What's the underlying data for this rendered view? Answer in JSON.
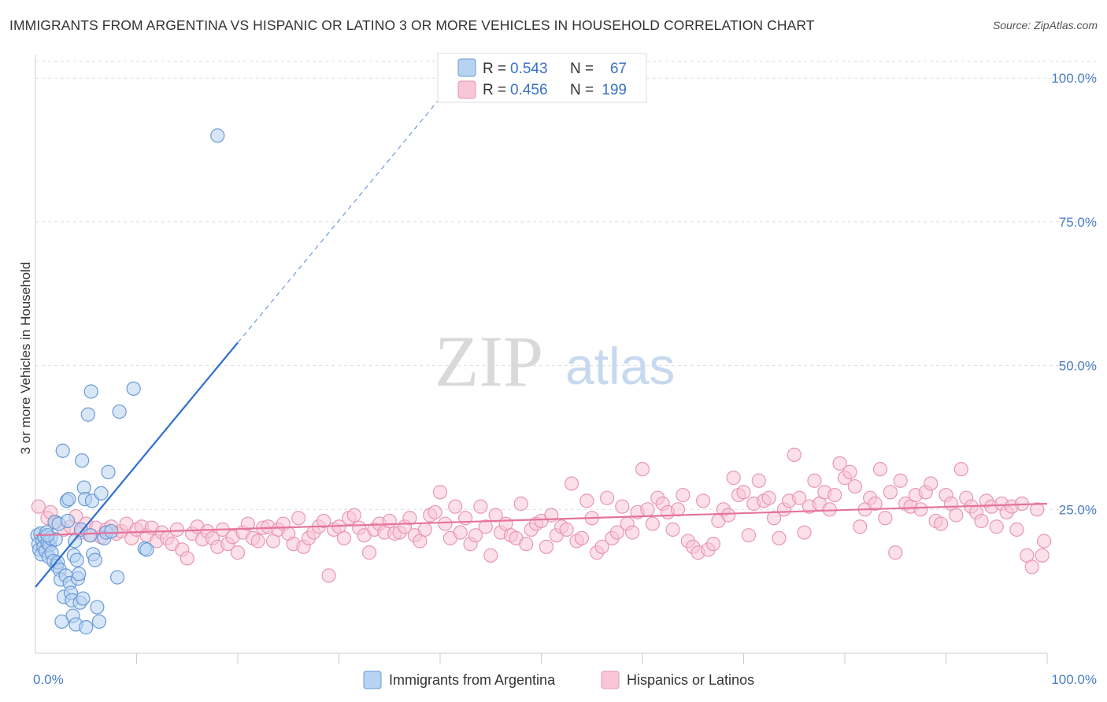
{
  "title": "IMMIGRANTS FROM ARGENTINA VS HISPANIC OR LATINO 3 OR MORE VEHICLES IN HOUSEHOLD CORRELATION CHART",
  "source": "Source: ZipAtlas.com",
  "watermark": {
    "zip": "ZIP",
    "atlas": "atlas"
  },
  "colors": {
    "blue_fill": "#b8d3f2",
    "blue_stroke": "#6a9ad6",
    "blue_line": "#2f6fd0",
    "pink_fill": "#f8c6d6",
    "pink_stroke": "#e996b4",
    "pink_line": "#e5739c",
    "grid": "#dddddd",
    "tick_text": "#4a7cc7"
  },
  "legend": {
    "rows": [
      {
        "r_label": "R =",
        "r_value": "0.543",
        "n_label": "N =",
        "n_value": "67"
      },
      {
        "r_label": "R =",
        "r_value": "0.456",
        "n_label": "N =",
        "n_value": "199"
      }
    ]
  },
  "chart_data": {
    "type": "scatter",
    "title": "IMMIGRANTS FROM ARGENTINA VS HISPANIC OR LATINO 3 OR MORE VEHICLES IN HOUSEHOLD CORRELATION CHART",
    "xlabel": "",
    "ylabel": "3 or more Vehicles in Household",
    "xlim": [
      0,
      100
    ],
    "ylim": [
      0,
      104
    ],
    "x_tick_labels": [
      "0.0%",
      "100.0%"
    ],
    "y_ticks": [
      {
        "value": 25,
        "label": "25.0%"
      },
      {
        "value": 50,
        "label": "50.0%"
      },
      {
        "value": 75,
        "label": "75.0%"
      },
      {
        "value": 100,
        "label": "100.0%"
      }
    ],
    "grid": true,
    "legend_position": "top-center",
    "series": [
      {
        "name": "Immigrants from Argentina",
        "r": 0.543,
        "n": 67,
        "trend": {
          "x0": 0,
          "y0": 11.5,
          "x1": 20,
          "y1": 54,
          "dash_to_x": 40
        },
        "points": [
          [
            0.2,
            20.5
          ],
          [
            0.3,
            19.0
          ],
          [
            0.4,
            18.0
          ],
          [
            0.5,
            20.8
          ],
          [
            0.6,
            17.2
          ],
          [
            0.7,
            19.5
          ],
          [
            0.8,
            18.5
          ],
          [
            0.9,
            20.2
          ],
          [
            1.0,
            17.8
          ],
          [
            1.1,
            21.0
          ],
          [
            1.2,
            19.2
          ],
          [
            1.3,
            16.8
          ],
          [
            1.4,
            18.8
          ],
          [
            1.5,
            20.0
          ],
          [
            1.6,
            17.5
          ],
          [
            1.8,
            16.0
          ],
          [
            1.9,
            22.8
          ],
          [
            2.0,
            19.8
          ],
          [
            2.1,
            15.2
          ],
          [
            2.2,
            15.8
          ],
          [
            2.3,
            22.5
          ],
          [
            2.4,
            14.5
          ],
          [
            2.5,
            12.8
          ],
          [
            2.6,
            5.5
          ],
          [
            2.7,
            35.2
          ],
          [
            2.8,
            9.8
          ],
          [
            3.0,
            13.5
          ],
          [
            3.1,
            26.5
          ],
          [
            3.2,
            23.0
          ],
          [
            3.3,
            26.8
          ],
          [
            3.4,
            12.2
          ],
          [
            3.5,
            10.5
          ],
          [
            3.6,
            9.2
          ],
          [
            3.7,
            6.5
          ],
          [
            3.8,
            17.0
          ],
          [
            3.9,
            19.5
          ],
          [
            4.0,
            5.0
          ],
          [
            4.1,
            16.2
          ],
          [
            4.2,
            13.0
          ],
          [
            4.3,
            13.8
          ],
          [
            4.4,
            8.8
          ],
          [
            4.5,
            21.5
          ],
          [
            4.6,
            33.5
          ],
          [
            4.7,
            9.5
          ],
          [
            4.8,
            28.8
          ],
          [
            4.9,
            26.8
          ],
          [
            5.0,
            4.5
          ],
          [
            5.2,
            41.5
          ],
          [
            5.4,
            20.5
          ],
          [
            5.5,
            45.5
          ],
          [
            5.6,
            26.5
          ],
          [
            5.7,
            17.2
          ],
          [
            5.9,
            16.2
          ],
          [
            6.1,
            8.0
          ],
          [
            6.3,
            5.5
          ],
          [
            6.5,
            27.8
          ],
          [
            6.8,
            20.0
          ],
          [
            7.0,
            21.0
          ],
          [
            7.2,
            31.5
          ],
          [
            7.5,
            21.2
          ],
          [
            8.1,
            13.2
          ],
          [
            8.3,
            42.0
          ],
          [
            9.7,
            46.0
          ],
          [
            10.8,
            18.2
          ],
          [
            11.0,
            18.0
          ],
          [
            18.0,
            90.0
          ],
          [
            1.2,
            20.5
          ]
        ]
      },
      {
        "name": "Hispanics or Latinos",
        "r": 0.456,
        "n": 199,
        "trend": {
          "x0": 0,
          "y0": 20.5,
          "x1": 100,
          "y1": 26.0
        },
        "points": [
          [
            0.3,
            25.5
          ],
          [
            1.2,
            23.5
          ],
          [
            1.5,
            24.5
          ],
          [
            2.0,
            22.8
          ],
          [
            2.8,
            21.5
          ],
          [
            3.5,
            22.0
          ],
          [
            4.0,
            23.8
          ],
          [
            4.5,
            21.0
          ],
          [
            5.0,
            22.5
          ],
          [
            5.5,
            20.5
          ],
          [
            6.0,
            21.8
          ],
          [
            6.5,
            20.2
          ],
          [
            7.0,
            21.5
          ],
          [
            7.5,
            22.0
          ],
          [
            8.0,
            20.8
          ],
          [
            8.5,
            21.2
          ],
          [
            9.0,
            22.5
          ],
          [
            9.5,
            20.0
          ],
          [
            10.0,
            21.5
          ],
          [
            10.5,
            22.0
          ],
          [
            11.0,
            20.5
          ],
          [
            11.5,
            21.8
          ],
          [
            12.0,
            19.5
          ],
          [
            12.5,
            21.0
          ],
          [
            13.0,
            20.0
          ],
          [
            13.5,
            19.0
          ],
          [
            14.0,
            21.5
          ],
          [
            14.5,
            18.0
          ],
          [
            15.0,
            16.5
          ],
          [
            15.5,
            20.8
          ],
          [
            16.0,
            22.0
          ],
          [
            16.5,
            19.8
          ],
          [
            17.0,
            21.2
          ],
          [
            17.5,
            20.0
          ],
          [
            18.0,
            18.5
          ],
          [
            18.5,
            21.5
          ],
          [
            19.0,
            19.0
          ],
          [
            19.5,
            20.2
          ],
          [
            20.0,
            17.5
          ],
          [
            20.5,
            21.0
          ],
          [
            21.0,
            22.5
          ],
          [
            21.5,
            20.0
          ],
          [
            22.0,
            19.5
          ],
          [
            22.5,
            21.8
          ],
          [
            23.0,
            22.0
          ],
          [
            23.5,
            19.5
          ],
          [
            24.0,
            21.5
          ],
          [
            24.5,
            22.5
          ],
          [
            25.0,
            20.8
          ],
          [
            25.5,
            19.0
          ],
          [
            26.0,
            23.5
          ],
          [
            26.5,
            18.5
          ],
          [
            27.0,
            20.0
          ],
          [
            27.5,
            21.0
          ],
          [
            28.0,
            22.0
          ],
          [
            28.5,
            23.0
          ],
          [
            29.0,
            13.5
          ],
          [
            29.5,
            21.5
          ],
          [
            30.0,
            22.0
          ],
          [
            30.5,
            20.0
          ],
          [
            31.0,
            23.5
          ],
          [
            31.5,
            24.0
          ],
          [
            32.0,
            21.8
          ],
          [
            32.5,
            20.5
          ],
          [
            33.0,
            17.5
          ],
          [
            33.5,
            21.5
          ],
          [
            34.0,
            22.5
          ],
          [
            34.5,
            21.0
          ],
          [
            35.0,
            23.0
          ],
          [
            35.5,
            20.8
          ],
          [
            36.0,
            21.0
          ],
          [
            36.5,
            22.0
          ],
          [
            37.0,
            23.5
          ],
          [
            37.5,
            20.5
          ],
          [
            38.0,
            19.5
          ],
          [
            38.5,
            21.5
          ],
          [
            39.0,
            24.0
          ],
          [
            39.5,
            24.5
          ],
          [
            40.0,
            28.0
          ],
          [
            40.5,
            22.5
          ],
          [
            41.0,
            20.0
          ],
          [
            41.5,
            25.5
          ],
          [
            42.0,
            21.0
          ],
          [
            42.5,
            23.5
          ],
          [
            43.0,
            19.0
          ],
          [
            43.5,
            20.5
          ],
          [
            44.0,
            25.5
          ],
          [
            44.5,
            22.0
          ],
          [
            45.0,
            17.0
          ],
          [
            45.5,
            24.0
          ],
          [
            46.0,
            21.0
          ],
          [
            46.5,
            22.5
          ],
          [
            47.0,
            20.5
          ],
          [
            47.5,
            20.0
          ],
          [
            48.0,
            26.0
          ],
          [
            48.5,
            19.0
          ],
          [
            49.0,
            21.5
          ],
          [
            49.5,
            22.5
          ],
          [
            50.0,
            23.0
          ],
          [
            50.5,
            18.5
          ],
          [
            51.0,
            24.0
          ],
          [
            51.5,
            20.5
          ],
          [
            52.0,
            22.0
          ],
          [
            52.5,
            21.5
          ],
          [
            53.0,
            29.5
          ],
          [
            53.5,
            19.5
          ],
          [
            54.0,
            20.0
          ],
          [
            54.5,
            26.5
          ],
          [
            55.0,
            23.5
          ],
          [
            55.5,
            17.5
          ],
          [
            56.0,
            18.5
          ],
          [
            56.5,
            27.0
          ],
          [
            57.0,
            20.0
          ],
          [
            57.5,
            21.0
          ],
          [
            58.0,
            25.5
          ],
          [
            58.5,
            22.5
          ],
          [
            59.0,
            21.0
          ],
          [
            59.5,
            24.5
          ],
          [
            60.0,
            32.0
          ],
          [
            60.5,
            25.0
          ],
          [
            61.0,
            22.5
          ],
          [
            61.5,
            27.0
          ],
          [
            62.0,
            26.0
          ],
          [
            62.5,
            24.5
          ],
          [
            63.0,
            21.5
          ],
          [
            63.5,
            25.0
          ],
          [
            64.0,
            27.5
          ],
          [
            64.5,
            19.5
          ],
          [
            65.0,
            18.5
          ],
          [
            65.5,
            17.5
          ],
          [
            66.0,
            26.5
          ],
          [
            66.5,
            18.0
          ],
          [
            67.0,
            19.0
          ],
          [
            67.5,
            23.0
          ],
          [
            68.0,
            25.0
          ],
          [
            68.5,
            24.0
          ],
          [
            69.0,
            30.5
          ],
          [
            69.5,
            27.5
          ],
          [
            70.0,
            28.0
          ],
          [
            70.5,
            20.5
          ],
          [
            71.0,
            26.0
          ],
          [
            71.5,
            30.0
          ],
          [
            72.0,
            26.5
          ],
          [
            72.5,
            27.0
          ],
          [
            73.0,
            23.5
          ],
          [
            73.5,
            20.0
          ],
          [
            74.0,
            25.0
          ],
          [
            74.5,
            26.5
          ],
          [
            75.0,
            34.5
          ],
          [
            75.5,
            27.0
          ],
          [
            76.0,
            21.0
          ],
          [
            76.5,
            25.5
          ],
          [
            77.0,
            30.0
          ],
          [
            77.5,
            26.0
          ],
          [
            78.0,
            28.0
          ],
          [
            78.5,
            25.0
          ],
          [
            79.0,
            27.5
          ],
          [
            79.5,
            33.0
          ],
          [
            80.0,
            30.5
          ],
          [
            80.5,
            31.5
          ],
          [
            81.0,
            29.0
          ],
          [
            81.5,
            22.0
          ],
          [
            82.0,
            25.0
          ],
          [
            82.5,
            27.0
          ],
          [
            83.0,
            26.0
          ],
          [
            83.5,
            32.0
          ],
          [
            84.0,
            23.5
          ],
          [
            84.5,
            28.0
          ],
          [
            85.0,
            17.5
          ],
          [
            85.5,
            30.0
          ],
          [
            86.0,
            26.0
          ],
          [
            86.5,
            25.5
          ],
          [
            87.0,
            27.5
          ],
          [
            87.5,
            25.0
          ],
          [
            88.0,
            28.0
          ],
          [
            88.5,
            29.5
          ],
          [
            89.0,
            23.0
          ],
          [
            89.5,
            22.5
          ],
          [
            90.0,
            27.5
          ],
          [
            90.5,
            26.0
          ],
          [
            91.0,
            24.0
          ],
          [
            91.5,
            32.0
          ],
          [
            92.0,
            27.0
          ],
          [
            92.5,
            25.5
          ],
          [
            93.0,
            24.5
          ],
          [
            93.5,
            23.0
          ],
          [
            94.0,
            26.5
          ],
          [
            94.5,
            25.5
          ],
          [
            95.0,
            22.0
          ],
          [
            95.5,
            26.0
          ],
          [
            96.0,
            24.5
          ],
          [
            96.5,
            25.5
          ],
          [
            97.0,
            21.5
          ],
          [
            97.5,
            26.0
          ],
          [
            98.0,
            17.0
          ],
          [
            98.5,
            15.0
          ],
          [
            99.0,
            25.0
          ],
          [
            99.5,
            17.0
          ],
          [
            99.7,
            19.5
          ]
        ]
      }
    ]
  }
}
